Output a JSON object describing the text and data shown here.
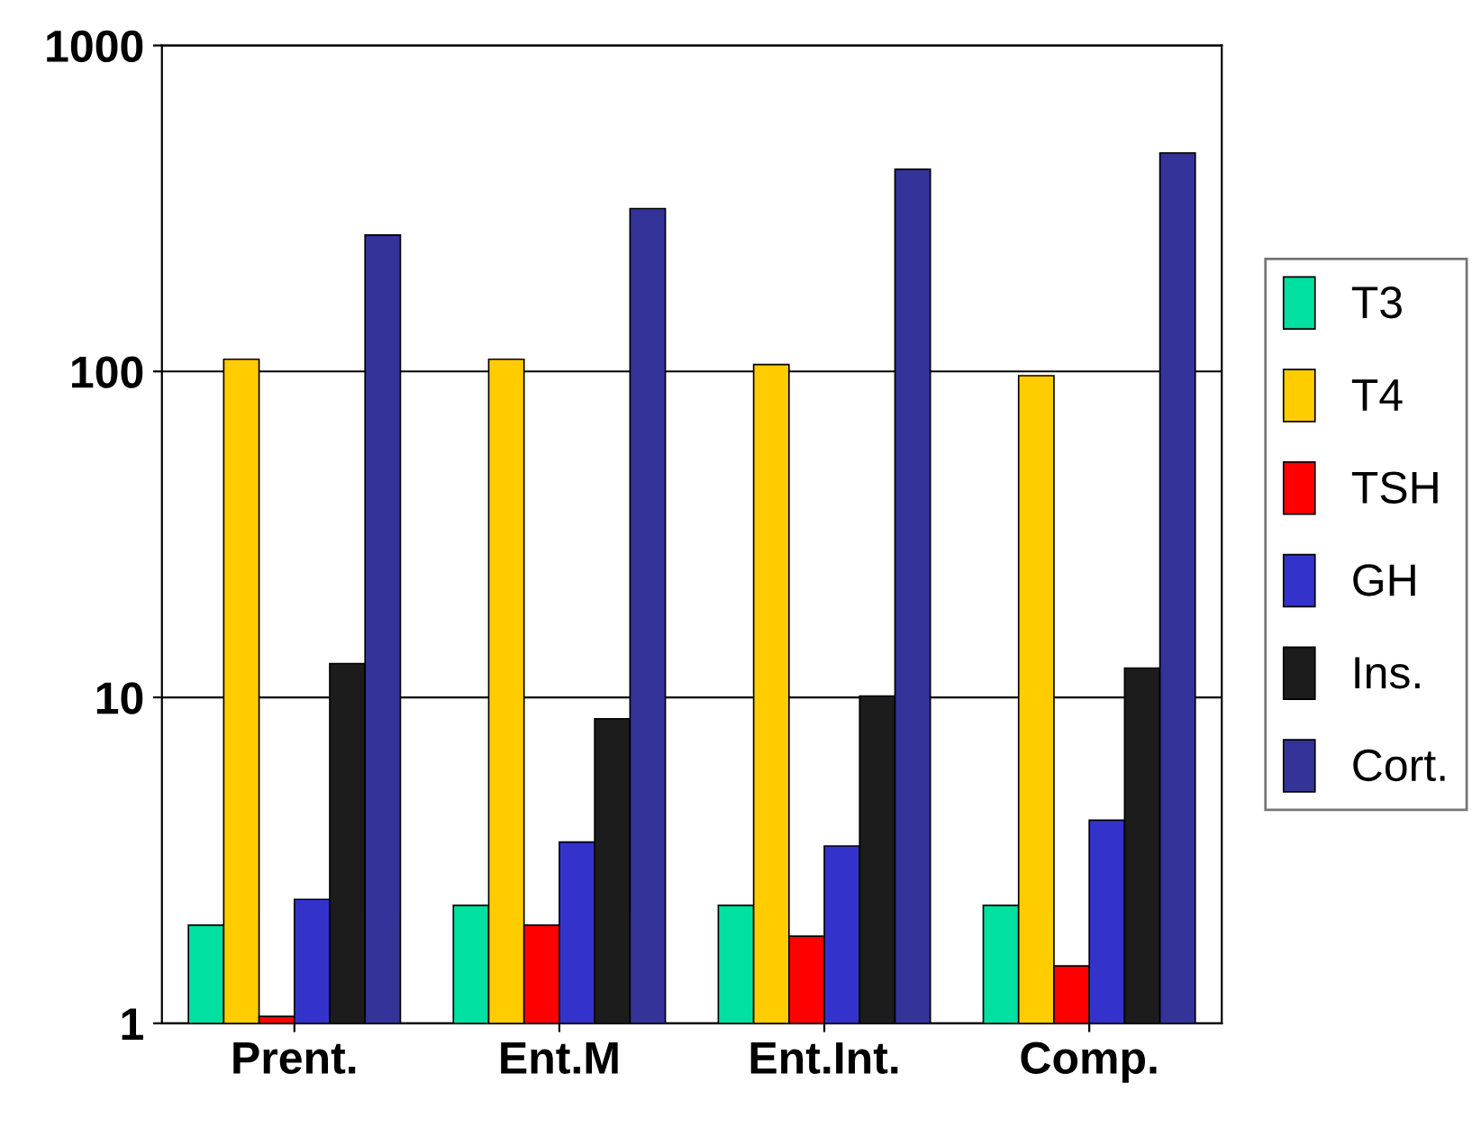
{
  "chart_data": {
    "type": "bar",
    "log": true,
    "grid": "y",
    "legend": "right",
    "categories": [
      "Prent.",
      "Ent.M",
      "Ent.Int.",
      "Comp."
    ],
    "ylim": [
      1,
      1000
    ],
    "yticks": [
      1,
      10,
      100,
      1000
    ],
    "series": [
      {
        "name": "T3",
        "color": "#00e0a0",
        "values": [
          2.0,
          2.3,
          2.3,
          2.3
        ]
      },
      {
        "name": "T4",
        "color": "#ffcc00",
        "values": [
          109,
          109,
          105,
          97
        ]
      },
      {
        "name": "TSH",
        "color": "#ff0000",
        "values": [
          1.05,
          2.0,
          1.85,
          1.5
        ]
      },
      {
        "name": "GH",
        "color": "#3333cc",
        "values": [
          2.4,
          3.6,
          3.5,
          4.2
        ]
      },
      {
        "name": "Ins.",
        "color": "#1c1c1c",
        "values": [
          12.7,
          8.6,
          10.1,
          12.3
        ]
      },
      {
        "name": "Cort.",
        "color": "#333399",
        "values": [
          262,
          316,
          417,
          468
        ]
      }
    ]
  }
}
